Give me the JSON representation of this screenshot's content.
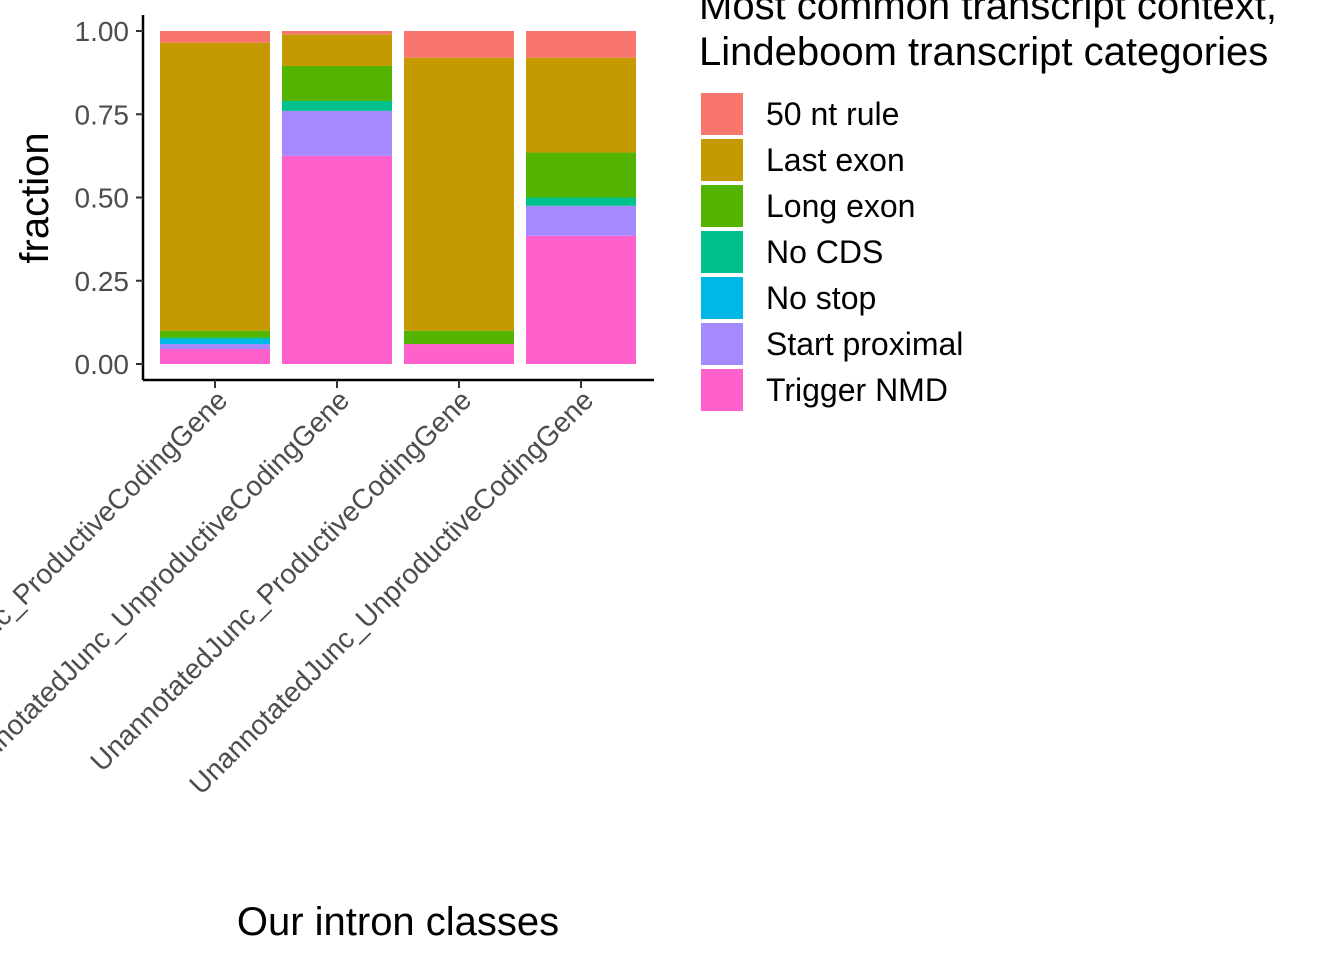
{
  "chart_data": {
    "type": "bar",
    "stacked": true,
    "xlabel": "Our intron classes",
    "ylabel": "fraction",
    "ylim": [
      0,
      1
    ],
    "yticks": [
      "0.00",
      "0.25",
      "0.50",
      "0.75",
      "1.00"
    ],
    "ytick_values": [
      0,
      0.25,
      0.5,
      0.75,
      1.0
    ],
    "grid": false,
    "legend_position": "right",
    "legend_title": [
      "Most common transcript context,",
      "Lindeboom transcript categories"
    ],
    "categories": [
      "AnnotatedJunc_ProductiveCodingGene",
      "AnnotatedJunc_UnproductiveCodingGene",
      "UnannotatedJunc_ProductiveCodingGene",
      "UnannotatedJunc_UnproductiveCodingGene"
    ],
    "series": [
      {
        "name": "Trigger NMD",
        "color": "#FF61CC",
        "values": [
          0.045,
          0.625,
          0.06,
          0.385
        ]
      },
      {
        "name": "Start proximal",
        "color": "#A58AFF",
        "values": [
          0.015,
          0.135,
          0.0,
          0.09
        ]
      },
      {
        "name": "No stop",
        "color": "#00B8E7",
        "values": [
          0.015,
          0.0,
          0.0,
          0.0
        ]
      },
      {
        "name": "No CDS",
        "color": "#00C08B",
        "values": [
          0.005,
          0.03,
          0.0,
          0.025
        ]
      },
      {
        "name": "Long exon",
        "color": "#53B400",
        "values": [
          0.02,
          0.105,
          0.04,
          0.135
        ]
      },
      {
        "name": "Last exon",
        "color": "#C49A00",
        "values": [
          0.865,
          0.095,
          0.82,
          0.285
        ]
      },
      {
        "name": "50 nt rule",
        "color": "#F8766D",
        "values": [
          0.035,
          0.01,
          0.08,
          0.08
        ]
      }
    ],
    "legend_order": [
      "50 nt rule",
      "Last exon",
      "Long exon",
      "No CDS",
      "No stop",
      "Start proximal",
      "Trigger NMD"
    ]
  }
}
